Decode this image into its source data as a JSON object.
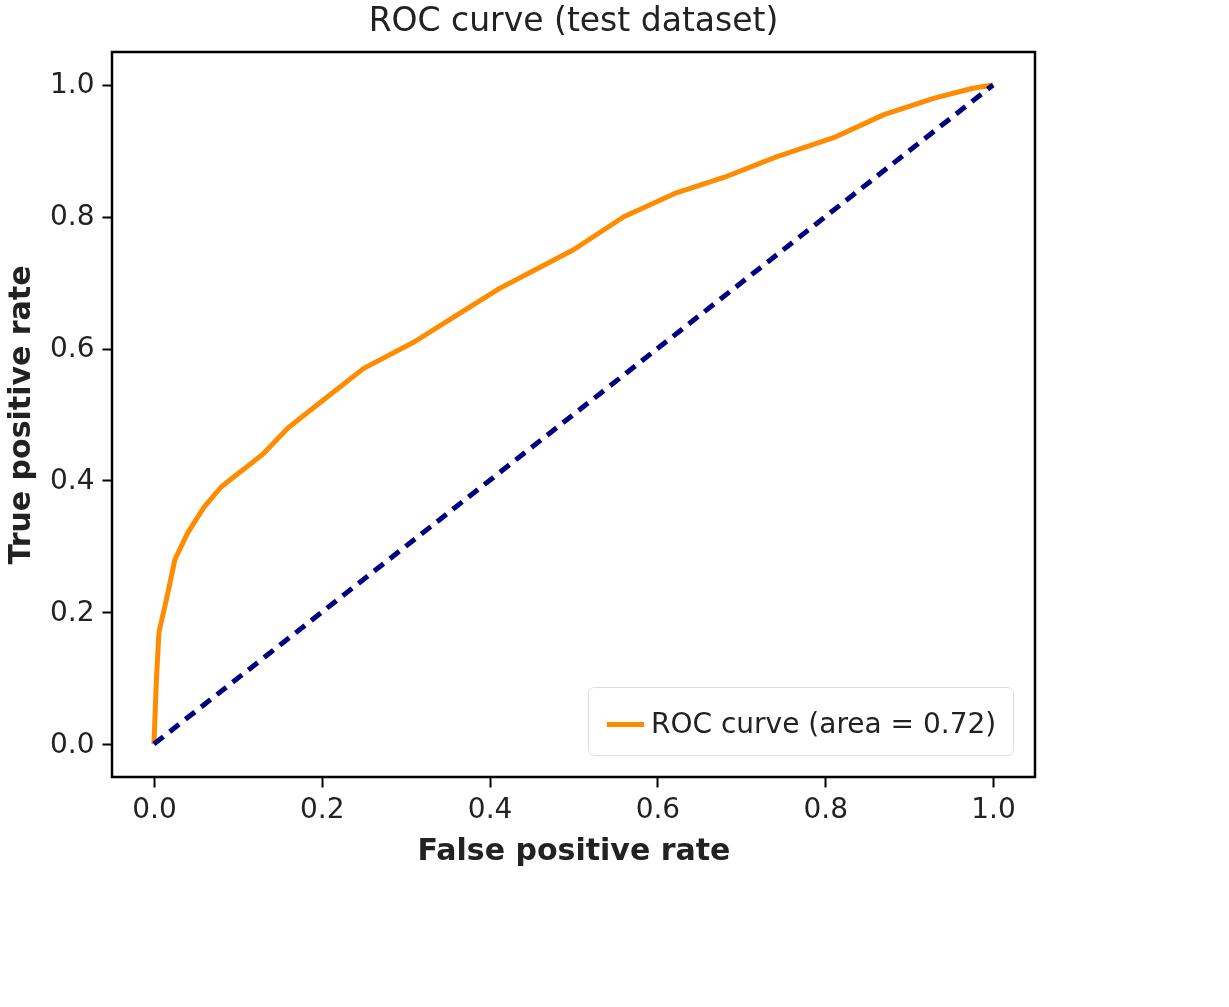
{
  "chart_data": {
    "type": "line",
    "title": "ROC curve (test dataset)",
    "xlabel": "False positive rate",
    "ylabel": "True positive rate",
    "xlim": [
      -0.05,
      1.05
    ],
    "ylim": [
      -0.05,
      1.05
    ],
    "xticks": [
      {
        "value": 0,
        "label": "0.0"
      },
      0.2,
      0.4,
      0.6,
      0.8,
      {
        "value": 1,
        "label": "1.0"
      }
    ],
    "yticks": [
      {
        "value": 0,
        "label": "0.0"
      },
      0.2,
      0.4,
      0.6,
      0.8,
      {
        "value": 1,
        "label": "1.0"
      }
    ],
    "grid": false,
    "legend": "bottom right",
    "marker": "none",
    "series": [
      {
        "name": "ROC curve (area = 0.72)",
        "color": "#ff8c00",
        "line_style": "solid",
        "x": [
          0,
          0.003,
          0.006,
          0.015,
          0.025,
          0.04,
          0.06,
          0.08,
          0.1,
          0.13,
          0.16,
          0.2,
          0.25,
          0.31,
          0.36,
          0.41,
          0.455,
          0.5,
          0.56,
          0.62,
          0.68,
          0.74,
          0.81,
          0.87,
          0.93,
          0.976,
          1
        ],
        "values": [
          0,
          0.1,
          0.17,
          0.22,
          0.28,
          0.32,
          0.36,
          0.39,
          0.41,
          0.44,
          0.48,
          0.52,
          0.57,
          0.61,
          0.65,
          0.69,
          0.72,
          0.75,
          0.8,
          0.835,
          0.86,
          0.89,
          0.92,
          0.955,
          0.98,
          0.995,
          1
        ]
      },
      {
        "color": "#000080",
        "line_style": "dashed",
        "x": [
          0,
          1
        ],
        "values": [
          0,
          1
        ]
      }
    ]
  }
}
